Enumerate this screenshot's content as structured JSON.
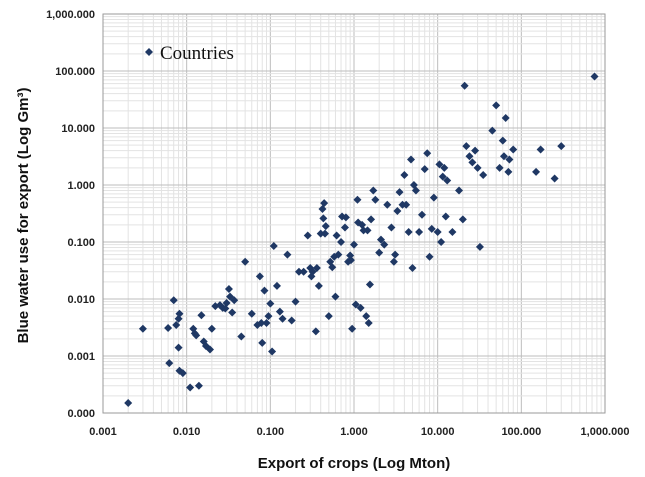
{
  "chart_data": {
    "type": "scatter",
    "xlabel": "Export of crops (Log Mton)",
    "ylabel": "Blue water use for export (Log Gm³)",
    "x_scale": "log",
    "y_scale": "log",
    "xlim": [
      0.001,
      1000
    ],
    "ylim": [
      0.0001,
      1000
    ],
    "x_ticks": [
      {
        "value": 0.001,
        "label": "0.001"
      },
      {
        "value": 0.01,
        "label": "0.010"
      },
      {
        "value": 0.1,
        "label": "0.100"
      },
      {
        "value": 1,
        "label": "1.000"
      },
      {
        "value": 10,
        "label": "10.000"
      },
      {
        "value": 100,
        "label": "100.000"
      },
      {
        "value": 1000,
        "label": "1,000.000"
      }
    ],
    "y_ticks": [
      {
        "value": 0.0001,
        "label": "0.000"
      },
      {
        "value": 0.001,
        "label": "0.001"
      },
      {
        "value": 0.01,
        "label": "0.010"
      },
      {
        "value": 0.1,
        "label": "0.100"
      },
      {
        "value": 1,
        "label": "1.000"
      },
      {
        "value": 10,
        "label": "10.000"
      },
      {
        "value": 100,
        "label": "100.000"
      },
      {
        "value": 1000,
        "label": "1,000.000"
      }
    ],
    "grid": "major and minor",
    "legend": {
      "position": "top-left",
      "entries": [
        "Countries"
      ]
    },
    "series": [
      {
        "name": "Countries",
        "color": "#1f3864",
        "marker": "diamond",
        "points": [
          [
            0.002,
            0.00015
          ],
          [
            0.003,
            0.003
          ],
          [
            0.006,
            0.0031
          ],
          [
            0.0062,
            0.00075
          ],
          [
            0.007,
            0.0095
          ],
          [
            0.0075,
            0.0035
          ],
          [
            0.008,
            0.0014
          ],
          [
            0.008,
            0.0045
          ],
          [
            0.0082,
            0.0055
          ],
          [
            0.0082,
            0.00055
          ],
          [
            0.009,
            0.0005
          ],
          [
            0.011,
            0.00028
          ],
          [
            0.012,
            0.003
          ],
          [
            0.0125,
            0.0025
          ],
          [
            0.013,
            0.0023
          ],
          [
            0.014,
            0.0003
          ],
          [
            0.015,
            0.0052
          ],
          [
            0.016,
            0.0018
          ],
          [
            0.017,
            0.0015
          ],
          [
            0.019,
            0.0013
          ],
          [
            0.02,
            0.003
          ],
          [
            0.022,
            0.0075
          ],
          [
            0.025,
            0.0078
          ],
          [
            0.027,
            0.007
          ],
          [
            0.029,
            0.0068
          ],
          [
            0.03,
            0.0085
          ],
          [
            0.032,
            0.015
          ],
          [
            0.033,
            0.011
          ],
          [
            0.035,
            0.0058
          ],
          [
            0.037,
            0.0095
          ],
          [
            0.045,
            0.0022
          ],
          [
            0.05,
            0.045
          ],
          [
            0.06,
            0.0055
          ],
          [
            0.07,
            0.0035
          ],
          [
            0.075,
            0.025
          ],
          [
            0.078,
            0.0038
          ],
          [
            0.08,
            0.0017
          ],
          [
            0.085,
            0.014
          ],
          [
            0.09,
            0.0038
          ],
          [
            0.095,
            0.005
          ],
          [
            0.1,
            0.0083
          ],
          [
            0.105,
            0.0012
          ],
          [
            0.11,
            0.085
          ],
          [
            0.12,
            0.017
          ],
          [
            0.13,
            0.006
          ],
          [
            0.14,
            0.0045
          ],
          [
            0.16,
            0.06
          ],
          [
            0.18,
            0.0042
          ],
          [
            0.2,
            0.009
          ],
          [
            0.22,
            0.03
          ],
          [
            0.25,
            0.03
          ],
          [
            0.28,
            0.13
          ],
          [
            0.3,
            0.035
          ],
          [
            0.31,
            0.025
          ],
          [
            0.32,
            0.03
          ],
          [
            0.35,
            0.0027
          ],
          [
            0.36,
            0.035
          ],
          [
            0.38,
            0.017
          ],
          [
            0.4,
            0.14
          ],
          [
            0.42,
            0.38
          ],
          [
            0.43,
            0.26
          ],
          [
            0.44,
            0.48
          ],
          [
            0.45,
            0.14
          ],
          [
            0.46,
            0.19
          ],
          [
            0.5,
            0.005
          ],
          [
            0.52,
            0.045
          ],
          [
            0.55,
            0.036
          ],
          [
            0.58,
            0.055
          ],
          [
            0.6,
            0.011
          ],
          [
            0.62,
            0.13
          ],
          [
            0.65,
            0.06
          ],
          [
            0.7,
            0.1
          ],
          [
            0.72,
            0.28
          ],
          [
            0.78,
            0.18
          ],
          [
            0.8,
            0.27
          ],
          [
            0.85,
            0.045
          ],
          [
            0.9,
            0.058
          ],
          [
            0.92,
            0.048
          ],
          [
            0.95,
            0.003
          ],
          [
            1.0,
            0.09
          ],
          [
            1.05,
            0.008
          ],
          [
            1.1,
            0.55
          ],
          [
            1.12,
            0.22
          ],
          [
            1.2,
            0.007
          ],
          [
            1.25,
            0.2
          ],
          [
            1.3,
            0.16
          ],
          [
            1.4,
            0.005
          ],
          [
            1.45,
            0.16
          ],
          [
            1.5,
            0.0038
          ],
          [
            1.55,
            0.018
          ],
          [
            1.6,
            0.25
          ],
          [
            1.7,
            0.8
          ],
          [
            1.8,
            0.55
          ],
          [
            2.0,
            0.065
          ],
          [
            2.1,
            0.11
          ],
          [
            2.3,
            0.09
          ],
          [
            2.5,
            0.45
          ],
          [
            2.8,
            0.18
          ],
          [
            3.0,
            0.045
          ],
          [
            3.1,
            0.06
          ],
          [
            3.3,
            0.35
          ],
          [
            3.5,
            0.75
          ],
          [
            3.8,
            0.45
          ],
          [
            4.0,
            1.5
          ],
          [
            4.2,
            0.45
          ],
          [
            4.5,
            0.15
          ],
          [
            4.8,
            2.8
          ],
          [
            5.0,
            0.035
          ],
          [
            5.2,
            1.0
          ],
          [
            5.5,
            0.8
          ],
          [
            6.0,
            0.15
          ],
          [
            6.5,
            0.3
          ],
          [
            7.0,
            1.9
          ],
          [
            7.5,
            3.6
          ],
          [
            8.0,
            0.055
          ],
          [
            8.5,
            0.17
          ],
          [
            9.0,
            0.6
          ],
          [
            10.0,
            0.15
          ],
          [
            10.5,
            2.3
          ],
          [
            11.0,
            0.1
          ],
          [
            11.5,
            1.4
          ],
          [
            12.0,
            2.0
          ],
          [
            12.5,
            0.28
          ],
          [
            13.0,
            1.2
          ],
          [
            15.0,
            0.15
          ],
          [
            18.0,
            0.8
          ],
          [
            20.0,
            0.25
          ],
          [
            21.0,
            55.0
          ],
          [
            22.0,
            4.8
          ],
          [
            24.0,
            3.2
          ],
          [
            26.0,
            2.5
          ],
          [
            28.0,
            4.0
          ],
          [
            30.0,
            2.0
          ],
          [
            32.0,
            0.082
          ],
          [
            35.0,
            1.5
          ],
          [
            45.0,
            9.0
          ],
          [
            50.0,
            25.0
          ],
          [
            55.0,
            2.0
          ],
          [
            60.0,
            6.0
          ],
          [
            62.0,
            3.2
          ],
          [
            65.0,
            15.0
          ],
          [
            70.0,
            1.7
          ],
          [
            72.0,
            2.8
          ],
          [
            80.0,
            4.2
          ],
          [
            150.0,
            1.7
          ],
          [
            170.0,
            4.2
          ],
          [
            250.0,
            1.3
          ],
          [
            300.0,
            4.8
          ],
          [
            750.0,
            80.0
          ]
        ]
      }
    ]
  }
}
